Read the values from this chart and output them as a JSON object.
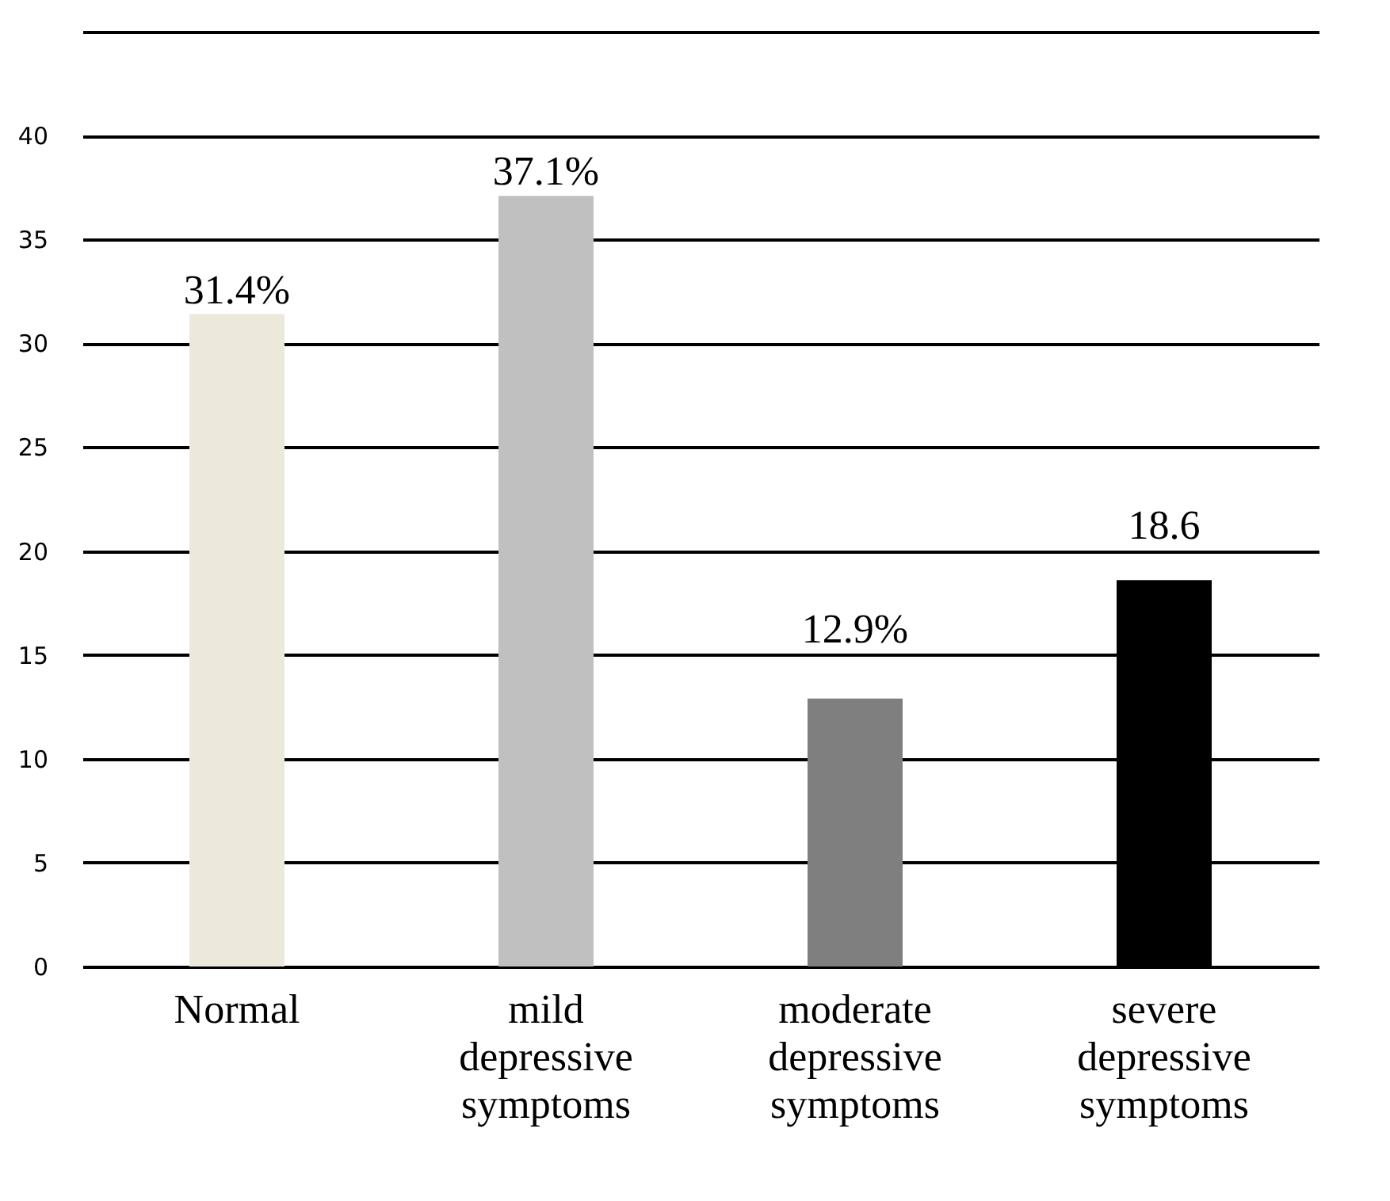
{
  "chart_data": {
    "type": "bar",
    "categories": [
      "Normal",
      "mild depressive symptoms",
      "moderate depressive symptoms",
      "severe depressive symptoms"
    ],
    "values": [
      31.4,
      37.1,
      12.9,
      18.6
    ],
    "colors": [
      "#ece9dc",
      "#c0c0c0",
      "#7f7f7f",
      "#000000"
    ],
    "value_labels": [
      "31.4%",
      "37.1%",
      "12.9%",
      "18.6"
    ],
    "ylim": [
      0,
      45
    ],
    "yticks": [
      0,
      5,
      10,
      15,
      20,
      25,
      30,
      35,
      40,
      {
        "value": 45,
        "label": null
      }
    ],
    "grid": "y"
  }
}
